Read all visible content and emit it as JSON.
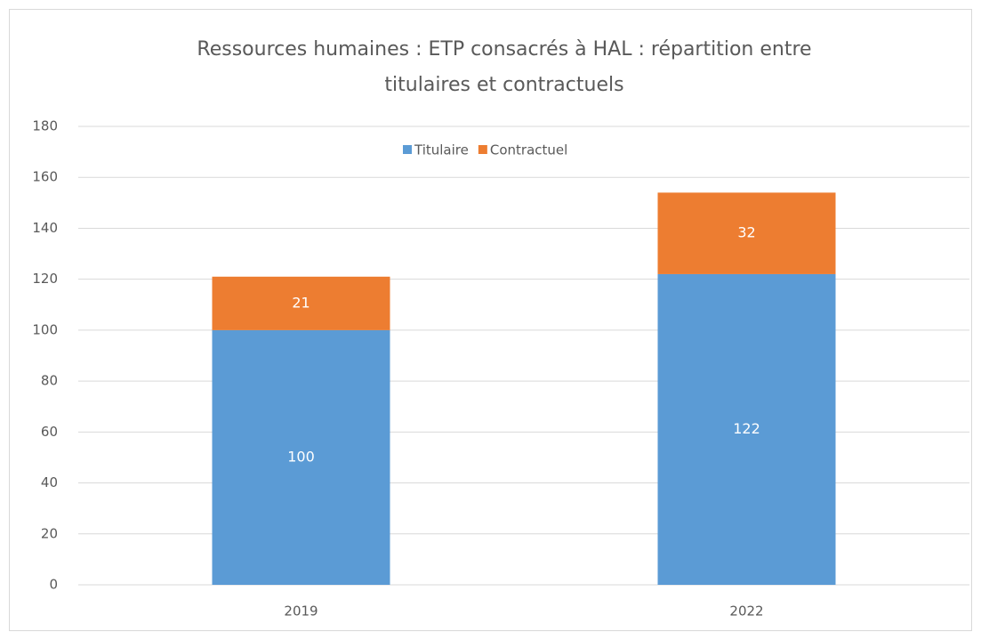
{
  "chart_data": {
    "type": "stacked_bar",
    "title": [
      "Ressources humaines : ETP consacrés à HAL : répartition  entre",
      "titulaires et contractuels"
    ],
    "categories": [
      "2019",
      "2022"
    ],
    "series": [
      {
        "name": "Titulaire",
        "color": "#5b9bd5",
        "values": [
          100,
          122
        ]
      },
      {
        "name": "Contractuel",
        "color": "#ed7d31",
        "values": [
          21,
          32
        ]
      }
    ],
    "ylim": [
      0,
      180
    ],
    "yticks": [
      0,
      20,
      40,
      60,
      80,
      100,
      120,
      140,
      160,
      180
    ],
    "grid": true,
    "legend": "top"
  }
}
